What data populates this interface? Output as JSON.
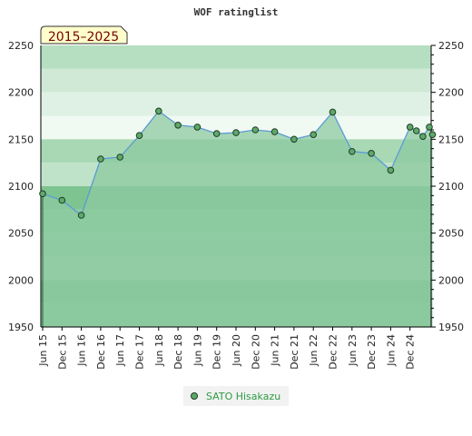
{
  "chart_data": {
    "type": "area",
    "title": "WOF ratinglist",
    "badge": "2015–2025",
    "xlabel": "",
    "ylabel": "",
    "ylim": [
      1950,
      2250
    ],
    "yticks": [
      1950,
      2000,
      2050,
      2100,
      2150,
      2200,
      2250
    ],
    "grid": false,
    "legend_position": "bottom-center",
    "x_tick_labels": [
      "Jun 15",
      "Dec 15",
      "Jun 16",
      "Dec 16",
      "Jun 17",
      "Dec 17",
      "Jun 18",
      "Dec 18",
      "Jun 19",
      "Dec 19",
      "Jun 20",
      "Dec 20",
      "Jun 21",
      "Dec 21",
      "Jun 22",
      "Dec 22",
      "Jun 23",
      "Dec 23",
      "Jun 24",
      "Dec 24"
    ],
    "series": [
      {
        "name": "SATO Hisakazu",
        "color": "#5fa86a",
        "points": [
          {
            "x": "Jun 15",
            "y": 2092
          },
          {
            "x": "Dec 15",
            "y": 2085
          },
          {
            "x": "Jun 16",
            "y": 2069
          },
          {
            "x": "Dec 16",
            "y": 2129
          },
          {
            "x": "Jun 17",
            "y": 2131
          },
          {
            "x": "Dec 17",
            "y": 2154
          },
          {
            "x": "Jun 18",
            "y": 2180
          },
          {
            "x": "Dec 18",
            "y": 2165
          },
          {
            "x": "Jun 19",
            "y": 2163
          },
          {
            "x": "Dec 19",
            "y": 2156
          },
          {
            "x": "Jun 20",
            "y": 2157
          },
          {
            "x": "Dec 20",
            "y": 2160
          },
          {
            "x": "Jun 21",
            "y": 2158
          },
          {
            "x": "Dec 21",
            "y": 2150
          },
          {
            "x": "Jun 22",
            "y": 2155
          },
          {
            "x": "Dec 22",
            "y": 2179
          },
          {
            "x": "Jun 23",
            "y": 2137
          },
          {
            "x": "Dec 23",
            "y": 2135
          },
          {
            "x": "Jun 24",
            "y": 2117
          },
          {
            "x": "Dec 24",
            "y": 2163
          },
          {
            "x": "Feb 25",
            "y": 2159
          },
          {
            "x": "Apr 25",
            "y": 2153
          },
          {
            "x": "Jun 25",
            "y": 2163
          },
          {
            "x": "Jul 25",
            "y": 2155
          }
        ]
      }
    ],
    "colors": {
      "line": "#5b9bd5",
      "area": "#8ccaa0",
      "marker_fill": "#5fa86a",
      "marker_stroke": "#1d3d22",
      "badge_fill": "#ffffcc",
      "legend_text": "#2e9a44"
    }
  }
}
